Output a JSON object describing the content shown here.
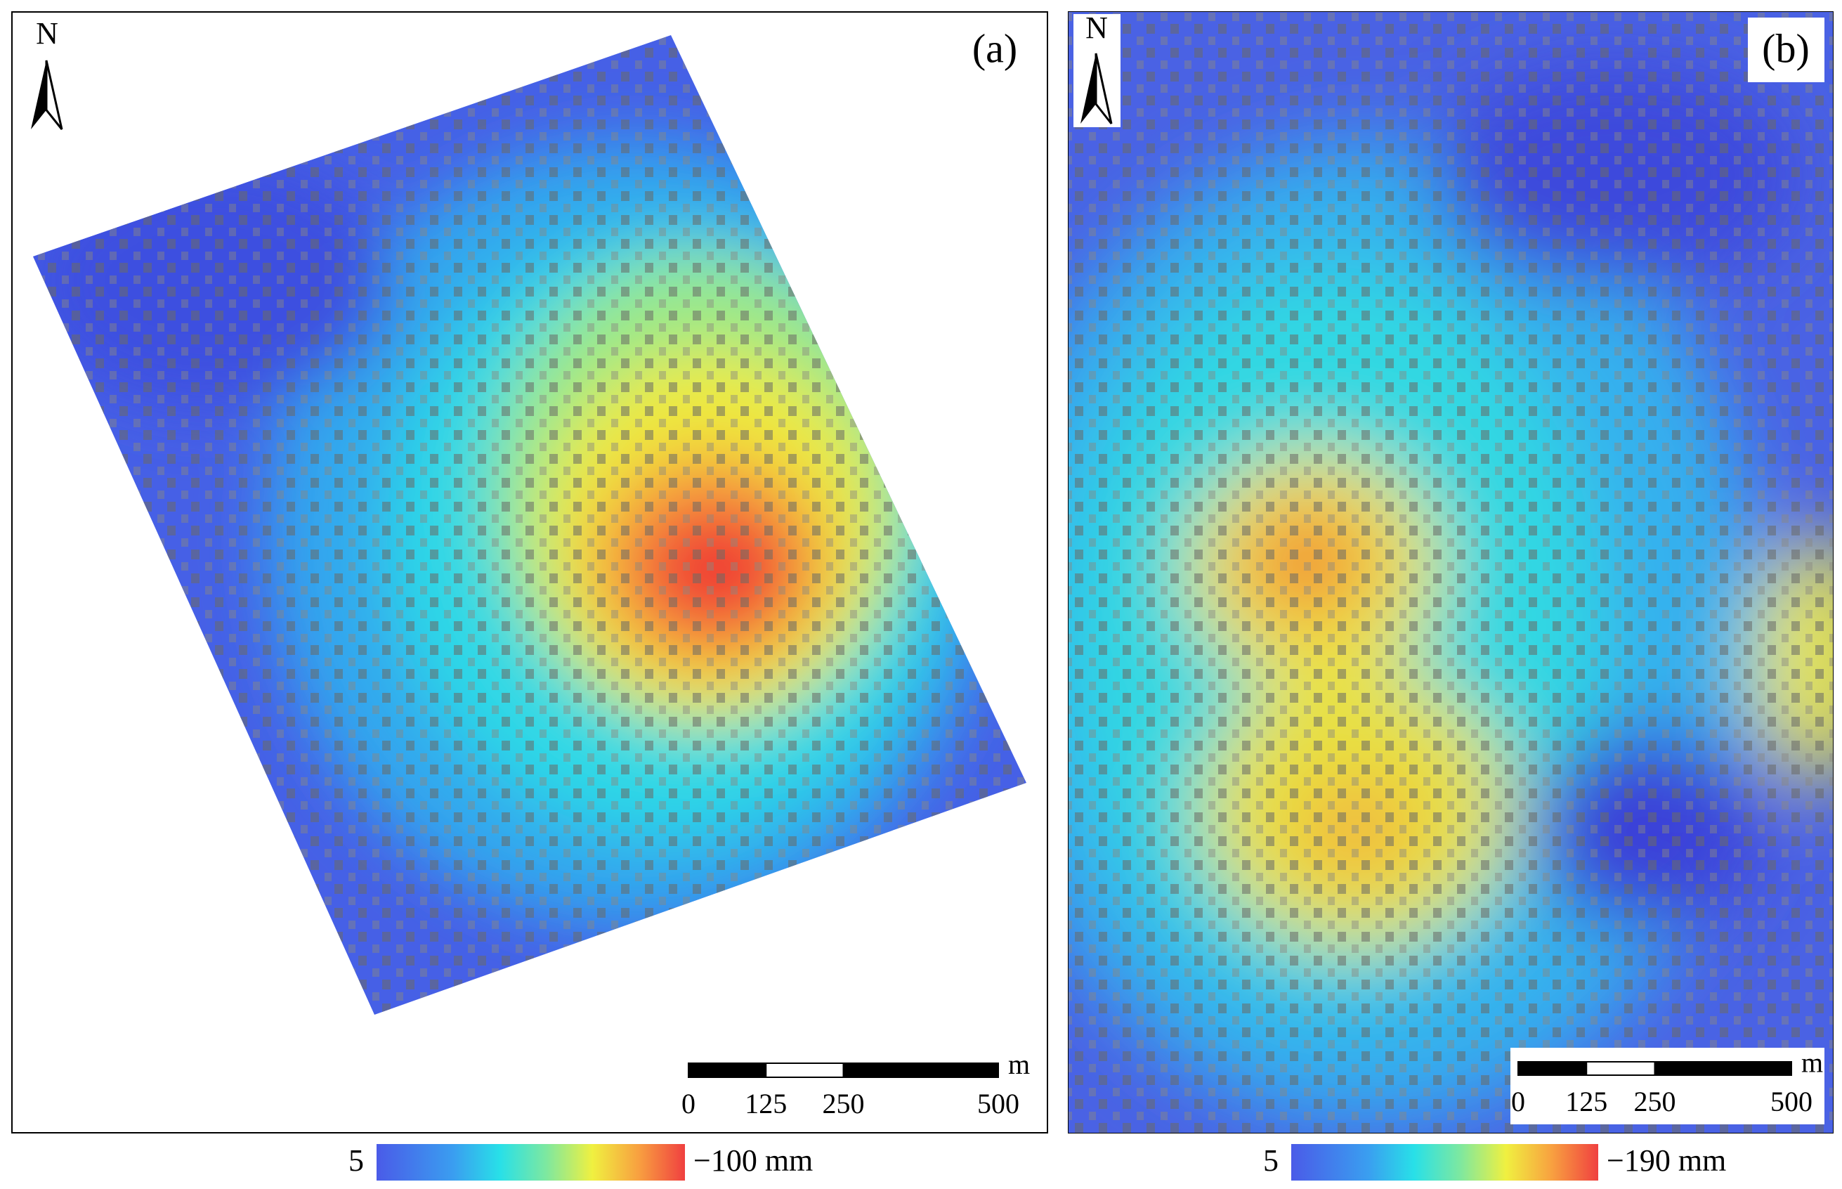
{
  "panels": [
    {
      "label": "(a)",
      "north": "N",
      "scale_bar": {
        "unit": "m",
        "ticks": [
          0,
          125,
          250,
          500
        ]
      },
      "colorbar": {
        "ticks": [
          {
            "value": 5,
            "label": "5"
          },
          {
            "value": -100,
            "label": "−100 mm"
          }
        ]
      }
    },
    {
      "label": "(b)",
      "north": "N",
      "scale_bar": {
        "unit": "m",
        "ticks": [
          0,
          125,
          250,
          500
        ]
      },
      "colorbar": {
        "ticks": [
          {
            "value": 5,
            "label": "5"
          },
          {
            "value": -190,
            "label": "−190 mm"
          }
        ]
      }
    }
  ]
}
